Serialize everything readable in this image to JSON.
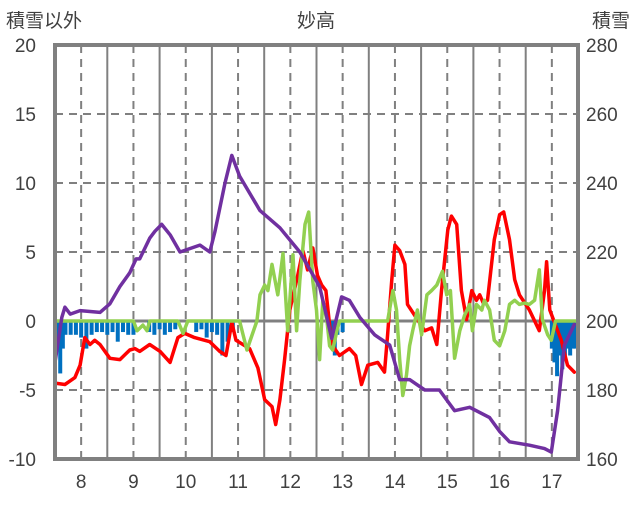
{
  "chart_data": {
    "type": "line",
    "title": "妙高",
    "ylabel_left": "積雪以外",
    "ylabel_right": "積雪",
    "xlim": [
      7.5,
      17.5
    ],
    "ylim_left": [
      -10,
      20
    ],
    "ylim_right": [
      160,
      280
    ],
    "x_ticks": [
      "8",
      "9",
      "10",
      "11",
      "12",
      "13",
      "14",
      "15",
      "16",
      "17"
    ],
    "y_ticks_left": [
      "20",
      "15",
      "10",
      "5",
      "0",
      "-5",
      "-10"
    ],
    "y_ticks_right": [
      "280",
      "260",
      "240",
      "220",
      "200",
      "180",
      "160"
    ],
    "grid": true,
    "colors": {
      "red": "#ff0000",
      "green": "#92d050",
      "purple": "#7030a0",
      "blue": "#0070c0",
      "frame": "#808080"
    },
    "series": [
      {
        "name": "red",
        "axis": "left",
        "color": "#ff0000",
        "x": [
          7.5,
          7.69,
          7.88,
          7.98,
          8.07,
          8.17,
          8.26,
          8.36,
          8.55,
          8.74,
          8.93,
          9.03,
          9.12,
          9.31,
          9.51,
          9.7,
          9.85,
          9.98,
          10.17,
          10.46,
          10.65,
          10.77,
          10.88,
          10.96,
          11.22,
          11.38,
          11.51,
          11.65,
          11.72,
          11.8,
          11.89,
          11.99,
          12.14,
          12.24,
          12.33,
          12.43,
          12.52,
          12.6,
          12.68,
          12.79,
          12.94,
          13.13,
          13.25,
          13.36,
          13.48,
          13.67,
          13.8,
          13.86,
          13.94,
          14.0,
          14.09,
          14.19,
          14.24,
          14.38,
          14.57,
          14.7,
          14.8,
          14.89,
          15.01,
          15.08,
          15.18,
          15.27,
          15.37,
          15.47,
          15.56,
          15.62,
          15.69,
          15.77,
          15.9,
          16.0,
          16.08,
          16.19,
          16.29,
          16.38,
          16.57,
          16.76,
          16.86,
          16.9,
          16.96,
          17.07,
          17.18,
          17.3,
          17.43
        ],
        "y": [
          -4.5,
          -4.6,
          -4.1,
          -3.2,
          -1.2,
          -1.7,
          -1.4,
          -1.7,
          -2.7,
          -2.8,
          -2.1,
          -2.0,
          -2.2,
          -1.7,
          -2.2,
          -3.0,
          -1.2,
          -0.9,
          -1.2,
          -1.5,
          -2.2,
          -2.5,
          -0.1,
          -1.4,
          -2.0,
          -3.4,
          -5.7,
          -6.2,
          -7.5,
          -5.7,
          -2.8,
          0.8,
          3.3,
          5.1,
          3.7,
          5.3,
          3.3,
          2.6,
          2.2,
          -1.7,
          -2.5,
          -2.0,
          -2.5,
          -4.6,
          -3.2,
          -3.0,
          -3.7,
          -1.0,
          3.0,
          5.5,
          5.1,
          4.1,
          1.2,
          0.4,
          -0.7,
          -0.5,
          -1.7,
          2.2,
          6.6,
          7.6,
          7.0,
          2.2,
          0.1,
          2.2,
          1.5,
          1.9,
          1.3,
          1.5,
          5.9,
          7.7,
          7.9,
          5.9,
          3.0,
          1.9,
          0.8,
          -0.7,
          2.2,
          4.3,
          0.8,
          -0.3,
          -1.4,
          -3.2,
          -3.7
        ]
      },
      {
        "name": "green",
        "axis": "left",
        "color": "#92d050",
        "x": [
          7.5,
          9.0,
          9.07,
          9.18,
          9.26,
          9.31,
          9.85,
          9.95,
          10.04,
          11.03,
          11.17,
          11.36,
          11.42,
          11.51,
          11.57,
          11.65,
          11.76,
          11.86,
          11.95,
          12.05,
          12.12,
          12.18,
          12.28,
          12.35,
          12.43,
          12.5,
          12.56,
          12.62,
          12.7,
          12.75,
          12.81,
          12.89,
          12.94,
          13.86,
          13.96,
          14.03,
          14.09,
          14.15,
          14.22,
          14.28,
          14.34,
          14.43,
          14.51,
          14.61,
          14.7,
          14.8,
          14.91,
          14.99,
          15.06,
          15.14,
          15.24,
          15.33,
          15.43,
          15.48,
          15.56,
          15.66,
          15.71,
          15.81,
          15.9,
          16.0,
          16.1,
          16.19,
          16.29,
          16.38,
          16.48,
          16.57,
          16.67,
          16.76,
          16.82,
          16.92,
          16.99,
          17.07,
          17.49
        ],
        "y": [
          0,
          0,
          -0.7,
          -0.3,
          -0.7,
          0,
          0,
          -0.9,
          0,
          0,
          -2.1,
          0,
          1.9,
          2.6,
          2.2,
          4.1,
          1.9,
          4.9,
          -0.7,
          4.8,
          -0.7,
          2.9,
          7.0,
          7.9,
          2.9,
          0.8,
          -2.8,
          1.5,
          0,
          -1.8,
          -2.1,
          -0.7,
          0,
          0,
          2.2,
          0.8,
          -2.8,
          -5.4,
          -3.9,
          -1.8,
          -0.7,
          0.8,
          -1.0,
          1.9,
          2.2,
          2.6,
          3.6,
          1.9,
          2.2,
          -2.7,
          -0.7,
          0.4,
          1.2,
          -0.7,
          1.2,
          0.8,
          1.5,
          0.8,
          -1.4,
          -1.8,
          -0.7,
          1.2,
          1.5,
          1.2,
          1.3,
          1.2,
          1.5,
          3.7,
          0.1,
          -1.0,
          -1.4,
          0,
          0
        ]
      },
      {
        "name": "purple",
        "axis": "right",
        "color": "#7030a0",
        "x": [
          7.5,
          7.63,
          7.69,
          7.79,
          7.98,
          8.36,
          8.55,
          8.74,
          8.93,
          9.05,
          9.12,
          9.31,
          9.41,
          9.54,
          9.7,
          9.89,
          10.27,
          10.46,
          10.56,
          10.75,
          10.88,
          11.03,
          11.42,
          11.8,
          12.18,
          12.56,
          12.79,
          12.98,
          13.13,
          13.33,
          13.61,
          13.9,
          14.09,
          14.28,
          14.57,
          14.85,
          15.14,
          15.43,
          15.81,
          16.0,
          16.19,
          16.57,
          16.86,
          16.99,
          17.11,
          17.24,
          17.43
        ],
        "y": [
          188,
          201,
          204,
          202,
          203,
          202.5,
          205,
          210,
          214,
          218,
          218,
          224,
          226,
          228,
          225,
          220,
          222,
          220,
          226,
          240,
          248,
          242,
          232,
          227,
          220,
          210,
          195,
          207,
          206,
          201,
          196,
          193,
          183,
          183,
          180,
          180,
          174,
          175,
          172,
          168,
          165,
          164,
          163,
          162,
          174,
          193,
          199
        ]
      }
    ],
    "bars": {
      "name": "blue",
      "axis": "left",
      "color": "#0070c0",
      "x": [
        7.55,
        7.6,
        7.65,
        7.7,
        7.8,
        7.9,
        8.0,
        8.1,
        8.2,
        8.3,
        8.4,
        8.5,
        8.6,
        8.7,
        8.8,
        8.9,
        9.0,
        9.3,
        9.4,
        9.5,
        9.6,
        9.7,
        9.8,
        10.2,
        10.3,
        10.4,
        10.5,
        10.6,
        10.7,
        10.8,
        10.9,
        11.95,
        12.8,
        12.85,
        12.9,
        13.0,
        17.0,
        17.05,
        17.1,
        17.15,
        17.2,
        17.25,
        17.3,
        17.35,
        17.4,
        17.45
      ],
      "y": [
        -2.2,
        -3.8,
        -2.0,
        -1.0,
        -1.0,
        -1.0,
        -1.2,
        -2.0,
        -1.0,
        -0.8,
        -0.8,
        -1.0,
        -0.8,
        -1.5,
        -0.8,
        -1.0,
        -1.0,
        -0.8,
        -1.0,
        -0.6,
        -1.0,
        -0.8,
        -0.6,
        -0.8,
        -0.6,
        -1.2,
        -0.8,
        -1.0,
        -2.5,
        -1.5,
        -0.8,
        -0.3,
        -0.8,
        -2.5,
        -1.0,
        -0.8,
        -2.0,
        -3.0,
        -4.0,
        -2.5,
        -3.5,
        -2.5,
        -2.0,
        -2.5,
        -2.0,
        -2.0
      ]
    }
  }
}
